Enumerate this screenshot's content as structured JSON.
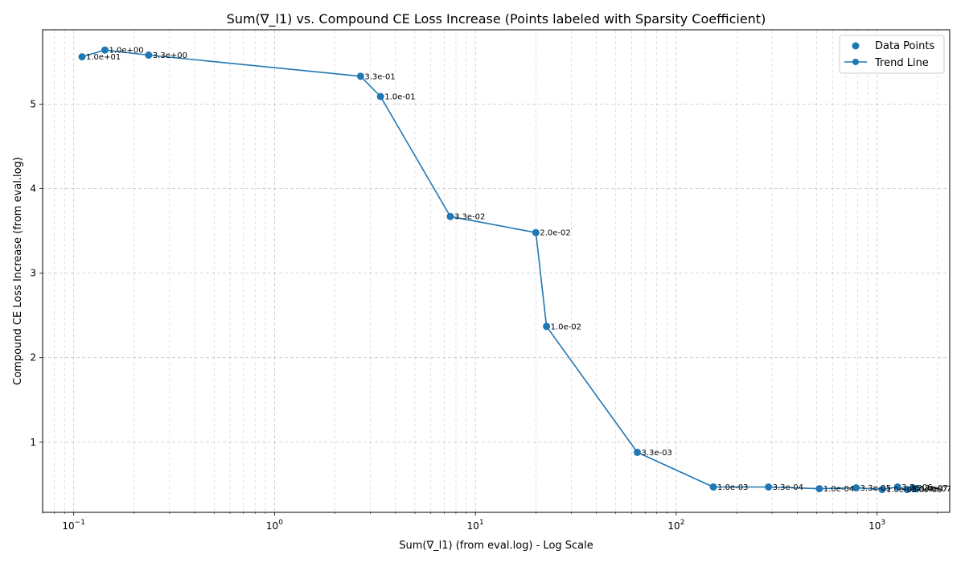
{
  "chart_data": {
    "type": "scatter",
    "title": "Sum(∇_l1) vs. Compound CE Loss Increase (Points labeled with Sparsity Coefficient)",
    "xlabel": "Sum(∇_l1) (from eval.log) - Log Scale",
    "ylabel": "Compound CE Loss Increase (from eval.log)",
    "xscale": "log",
    "xlim": [
      0.07,
      2300
    ],
    "ylim": [
      0.17,
      5.88
    ],
    "grid": true,
    "legend": {
      "placement": "top-right",
      "entries": [
        "Data Points",
        "Trend Line"
      ]
    },
    "color": "#1f77b4",
    "x_ticks": [
      {
        "value": 0.1,
        "base": "10",
        "exp": "−1"
      },
      {
        "value": 1,
        "base": "10",
        "exp": "0"
      },
      {
        "value": 10,
        "base": "10",
        "exp": "1"
      },
      {
        "value": 100,
        "base": "10",
        "exp": "2"
      },
      {
        "value": 1000,
        "base": "10",
        "exp": "3"
      }
    ],
    "y_ticks": [
      {
        "value": 1,
        "label": "1"
      },
      {
        "value": 2,
        "label": "2"
      },
      {
        "value": 3,
        "label": "3"
      },
      {
        "value": 4,
        "label": "4"
      },
      {
        "value": 5,
        "label": "5"
      }
    ],
    "points": [
      {
        "x": 0.11,
        "y": 5.56,
        "label": "1.0e+01"
      },
      {
        "x": 0.143,
        "y": 5.64,
        "label": "1.0e+00"
      },
      {
        "x": 0.236,
        "y": 5.58,
        "label": "3.3e+00"
      },
      {
        "x": 2.68,
        "y": 5.33,
        "label": "3.3e-01"
      },
      {
        "x": 3.37,
        "y": 5.09,
        "label": "1.0e-01"
      },
      {
        "x": 7.5,
        "y": 3.67,
        "label": "3.3e-02"
      },
      {
        "x": 20.0,
        "y": 3.48,
        "label": "2.0e-02"
      },
      {
        "x": 22.6,
        "y": 2.37,
        "label": "1.0e-02"
      },
      {
        "x": 64.0,
        "y": 0.88,
        "label": "3.3e-03"
      },
      {
        "x": 153,
        "y": 0.47,
        "label": "1.0e-03"
      },
      {
        "x": 288,
        "y": 0.47,
        "label": "3.3e-04"
      },
      {
        "x": 516,
        "y": 0.45,
        "label": "1.0e-04"
      },
      {
        "x": 787,
        "y": 0.46,
        "label": "3.3e-05"
      },
      {
        "x": 1060,
        "y": 0.44,
        "label": "1.0e-05"
      },
      {
        "x": 1265,
        "y": 0.47,
        "label": "3.3e-06"
      },
      {
        "x": 1410,
        "y": 0.44,
        "label": "1.0e-06"
      },
      {
        "x": 1510,
        "y": 0.46,
        "label": "3.3e-07"
      },
      {
        "x": 1570,
        "y": 0.45,
        "label": "1.0e-07"
      }
    ]
  }
}
